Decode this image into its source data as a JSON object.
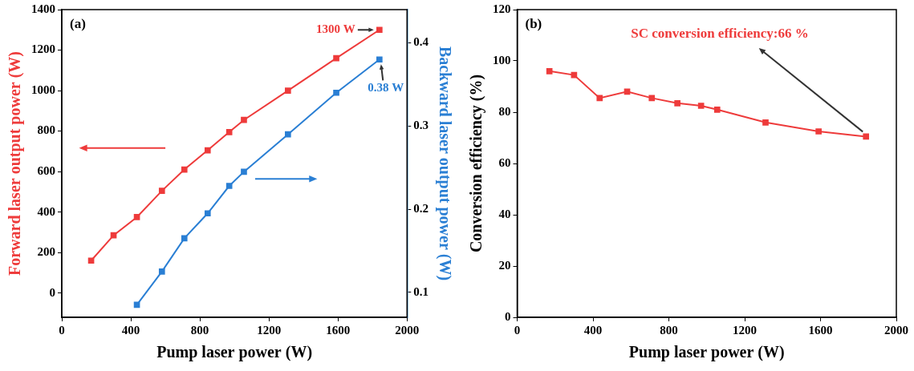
{
  "chart_data": [
    {
      "type": "line",
      "panel_label": "(a)",
      "x_label": "Pump laser power (W)",
      "y_label": "Forward laser output power (W)",
      "y2_label": "Backward laser output power (W)",
      "xlim": [
        0,
        2000
      ],
      "xticks": [
        0,
        400,
        800,
        1200,
        1600,
        2000
      ],
      "ylim": [
        -120,
        1400
      ],
      "yticks": [
        0,
        200,
        400,
        600,
        800,
        1000,
        1200,
        1400
      ],
      "y2lim": [
        0.07,
        0.44
      ],
      "y2ticks": [
        0.1,
        0.2,
        0.3,
        0.4
      ],
      "grid": false,
      "series": [
        {
          "color": "#ee3b3b",
          "marker": "square",
          "axis": "y",
          "x": [
            170,
            300,
            435,
            580,
            710,
            845,
            970,
            1055,
            1310,
            1590,
            1840
          ],
          "values": [
            160,
            285,
            375,
            505,
            610,
            705,
            795,
            855,
            1000,
            1160,
            1300
          ]
        },
        {
          "color": "#2a7fd4",
          "marker": "square",
          "axis": "y2",
          "x": [
            435,
            580,
            710,
            845,
            970,
            1055,
            1310,
            1590,
            1840
          ],
          "values": [
            0.085,
            0.125,
            0.165,
            0.195,
            0.228,
            0.245,
            0.29,
            0.34,
            0.38
          ]
        }
      ],
      "annotations": [
        "1300 W",
        "0.38 W"
      ]
    },
    {
      "type": "line",
      "panel_label": "(b)",
      "x_label": "Pump laser power (W)",
      "y_label": "Conversion efficiency (%)",
      "xlim": [
        0,
        2000
      ],
      "xticks": [
        0,
        400,
        800,
        1200,
        1600,
        2000
      ],
      "ylim": [
        0,
        120
      ],
      "yticks": [
        0,
        20,
        40,
        60,
        80,
        100,
        120
      ],
      "grid": false,
      "series": [
        {
          "color": "#ee3b3b",
          "marker": "square",
          "axis": "y",
          "x": [
            170,
            300,
            435,
            580,
            710,
            845,
            970,
            1055,
            1310,
            1590,
            1840
          ],
          "values": [
            96,
            94.5,
            85.5,
            88,
            85.5,
            83.5,
            82.5,
            81,
            76,
            72.5,
            70.5
          ]
        }
      ],
      "annotations": [
        "SC conversion efficiency:66 %"
      ]
    }
  ]
}
